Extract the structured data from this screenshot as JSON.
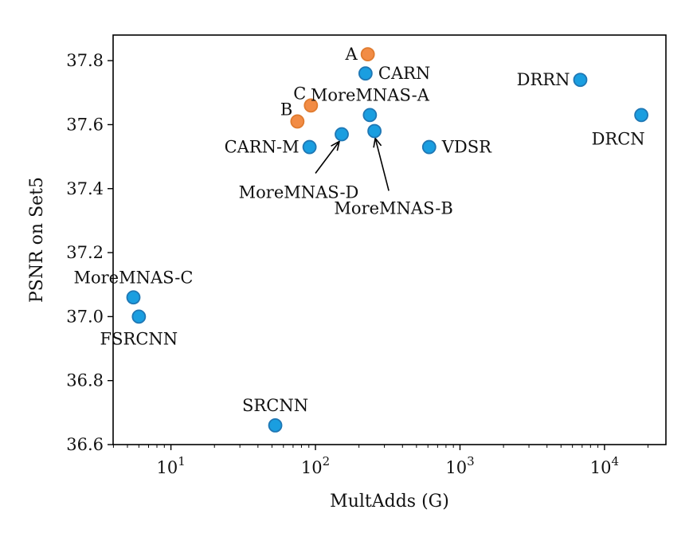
{
  "chart_data": {
    "type": "scatter",
    "title": "",
    "xlabel": "MultAdds (G)",
    "ylabel": "PSNR on Set5",
    "xscale": "log",
    "xlim": [
      3.98,
      26600
    ],
    "ylim": [
      36.6,
      37.88
    ],
    "grid": false,
    "x_ticks": [
      {
        "value": 10,
        "base": "10",
        "exp": "1"
      },
      {
        "value": 100,
        "base": "10",
        "exp": "2"
      },
      {
        "value": 1000,
        "base": "10",
        "exp": "3"
      },
      {
        "value": 10000,
        "base": "10",
        "exp": "4"
      }
    ],
    "y_ticks": [
      {
        "value": 36.6,
        "label": "36.6"
      },
      {
        "value": 36.8,
        "label": "36.8"
      },
      {
        "value": 37.0,
        "label": "37.0"
      },
      {
        "value": 37.2,
        "label": "37.2"
      },
      {
        "value": 37.4,
        "label": "37.4"
      },
      {
        "value": 37.6,
        "label": "37.6"
      },
      {
        "value": 37.8,
        "label": "37.8"
      }
    ],
    "colors": {
      "ours": "#f28c45",
      "others": "#1a9ee0",
      "ours_edge": "#e07b2f",
      "others_edge": "#1f77b4"
    },
    "points": [
      {
        "name": "A",
        "x": 230,
        "y": 37.82,
        "group": "ours",
        "label": "A",
        "label_pos": "left"
      },
      {
        "name": "C",
        "x": 93,
        "y": 37.66,
        "group": "ours",
        "label": "C",
        "label_pos": "upper-left"
      },
      {
        "name": "B",
        "x": 75,
        "y": 37.61,
        "group": "ours",
        "label": "B",
        "label_pos": "upper-left"
      },
      {
        "name": "CARN",
        "x": 222,
        "y": 37.76,
        "group": "others",
        "label": "CARN",
        "label_pos": "right"
      },
      {
        "name": "MoreMNAS-A",
        "x": 238,
        "y": 37.63,
        "group": "others",
        "label": "MoreMNAS-A",
        "label_pos": "top"
      },
      {
        "name": "MoreMNAS-D",
        "x": 152,
        "y": 37.57,
        "group": "others",
        "label": "MoreMNAS-D",
        "label_pos": "arrow-below-left"
      },
      {
        "name": "MoreMNAS-B",
        "x": 256,
        "y": 37.58,
        "group": "others",
        "label": "MoreMNAS-B",
        "label_pos": "arrow-below"
      },
      {
        "name": "CARN-M",
        "x": 91,
        "y": 37.53,
        "group": "others",
        "label": "CARN-M",
        "label_pos": "left"
      },
      {
        "name": "VDSR",
        "x": 612,
        "y": 37.53,
        "group": "others",
        "label": "VDSR",
        "label_pos": "right"
      },
      {
        "name": "DRRN",
        "x": 6797,
        "y": 37.74,
        "group": "others",
        "label": "DRRN",
        "label_pos": "left"
      },
      {
        "name": "DRCN",
        "x": 17974,
        "y": 37.63,
        "group": "others",
        "label": "DRCN",
        "label_pos": "below-left"
      },
      {
        "name": "MoreMNAS-C",
        "x": 5.5,
        "y": 37.06,
        "group": "others",
        "label": "MoreMNAS-C",
        "label_pos": "top"
      },
      {
        "name": "FSRCNN",
        "x": 6.0,
        "y": 37.0,
        "group": "others",
        "label": "FSRCNN",
        "label_pos": "below"
      },
      {
        "name": "SRCNN",
        "x": 52.7,
        "y": 36.66,
        "group": "others",
        "label": "SRCNN",
        "label_pos": "top"
      }
    ]
  }
}
